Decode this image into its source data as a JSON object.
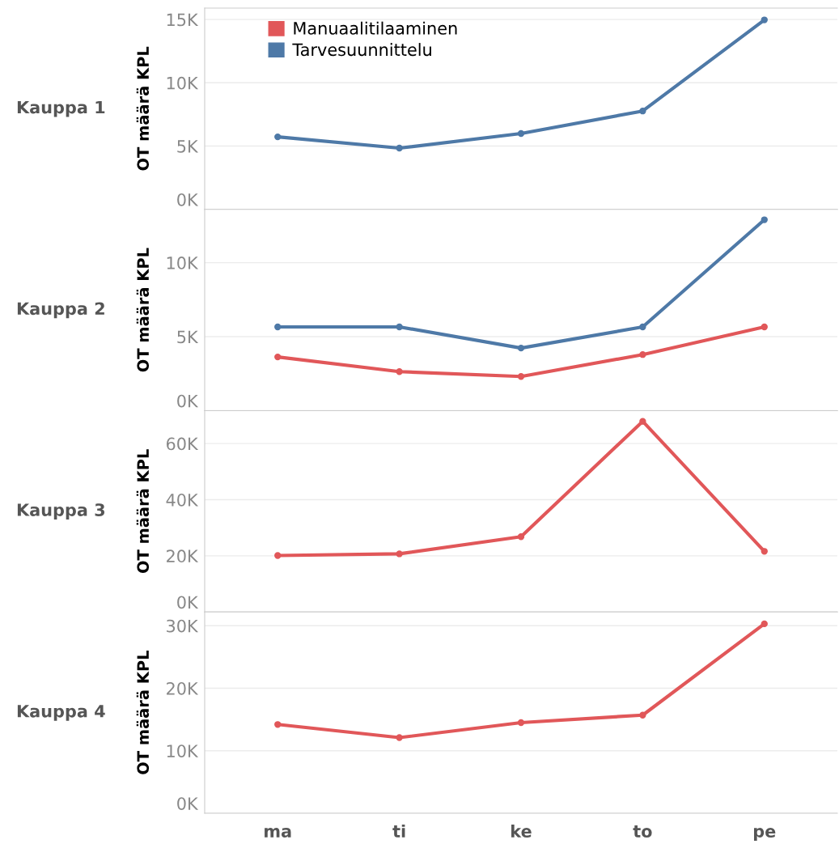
{
  "chart_data": [
    {
      "type": "line",
      "title": "Kauppa 1",
      "ylabel": "OT määrä KPL",
      "ylim": [
        0,
        15900
      ],
      "yticks": [
        {
          "value": 0,
          "label": "0K"
        },
        {
          "value": 5000,
          "label": "5K"
        },
        {
          "value": 10000,
          "label": "10K"
        },
        {
          "value": 15000,
          "label": "15K"
        }
      ],
      "grid": "y",
      "legend": "top left",
      "marker": "circle",
      "line_style": "solid",
      "tick_labels": "y",
      "series": [
        {
          "name": "Manuaalitilaaminen",
          "color": "#e15759",
          "values": [
            null,
            null,
            null,
            null,
            null
          ]
        },
        {
          "name": "Tarvesuunnittelu",
          "color": "#4e79a7",
          "values": [
            5730,
            4840,
            5990,
            7770,
            14970
          ]
        }
      ]
    },
    {
      "type": "line",
      "title": "Kauppa 2",
      "ylabel": "OT määrä KPL",
      "ylim": [
        0,
        13600
      ],
      "yticks": [
        {
          "value": 0,
          "label": "0K"
        },
        {
          "value": 5000,
          "label": "5K"
        },
        {
          "value": 10000,
          "label": "10K"
        }
      ],
      "grid": "y",
      "marker": "circle",
      "line_style": "solid",
      "tick_labels": "y",
      "series": [
        {
          "color": "#4e79a7",
          "values": [
            5660,
            5660,
            4230,
            5660,
            12900
          ]
        },
        {
          "color": "#e15759",
          "values": [
            3630,
            2640,
            2310,
            3790,
            5660
          ]
        }
      ]
    },
    {
      "type": "line",
      "title": "Kauppa 3",
      "ylabel": "OT määrä KPL",
      "ylim": [
        0,
        71700
      ],
      "yticks": [
        {
          "value": 0,
          "label": "0K"
        },
        {
          "value": 20000,
          "label": "20K"
        },
        {
          "value": 40000,
          "label": "40K"
        },
        {
          "value": 60000,
          "label": "60K"
        }
      ],
      "grid": "y",
      "marker": "circle",
      "line_style": "solid",
      "tick_labels": "y",
      "series": [
        {
          "color": "#e15759",
          "values": [
            20100,
            20700,
            26800,
            67900,
            21600
          ]
        }
      ]
    },
    {
      "type": "line",
      "title": "Kauppa 4",
      "ylabel": "OT määrä KPL",
      "categories": [
        "ma",
        "ti",
        "ke",
        "to",
        "pe"
      ],
      "ylim": [
        0,
        32200
      ],
      "yticks": [
        {
          "value": 0,
          "label": "0K"
        },
        {
          "value": 10000,
          "label": "10K"
        },
        {
          "value": 20000,
          "label": "20K"
        },
        {
          "value": 30000,
          "label": "30K"
        }
      ],
      "grid": "y",
      "marker": "circle",
      "line_style": "solid",
      "series": [
        {
          "color": "#e15759",
          "values": [
            14200,
            12100,
            14500,
            15700,
            30300
          ]
        }
      ]
    }
  ]
}
